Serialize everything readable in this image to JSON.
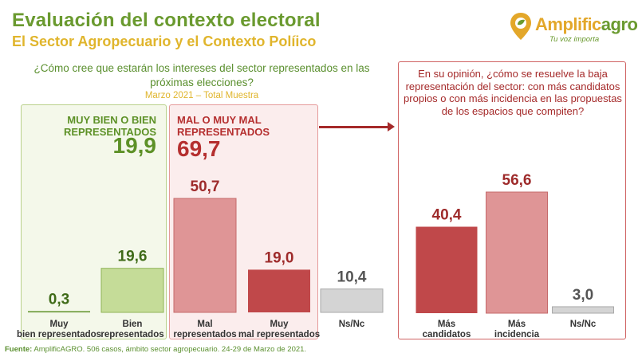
{
  "header": {
    "title": "Evaluación del contexto electoral",
    "subtitle": "El Sector Agropecuario y el Contexto Políico"
  },
  "logo": {
    "name_part1": "Amplific",
    "name_part2": "agro",
    "tagline": "Tu voz importa"
  },
  "left_question": {
    "text": "¿Cómo cree que estarán los intereses del sector representados en las próximas elecciones?",
    "sample_note": "Marzo 2021 – Total Muestra"
  },
  "right_question": {
    "text": "En su opinión, ¿cómo se resuelve la baja representación del sector: con más candidatos propios o con más incidencia en las propuestas de los espacios que compiten?"
  },
  "groups": {
    "good": {
      "label": "MUY BIEN O BIEN REPRESENTADOS",
      "value": "19,9"
    },
    "bad": {
      "label": "MAL O MUY MAL REPRESENTADOS",
      "value": "69,7"
    }
  },
  "colors": {
    "green_dark": "#5d9127",
    "green_light": "#c5dc98",
    "red_dark": "#c0484a",
    "red_light": "#df9596",
    "gray": "#d4d4d4"
  },
  "chart_data": [
    {
      "type": "bar",
      "title": "¿Cómo cree que estarán los intereses del sector representados en las próximas elecciones?",
      "categories": [
        "Muy bien representados",
        "Bien representados",
        "Mal representados",
        "Muy mal representados",
        "Ns/Nc"
      ],
      "values": [
        0.3,
        19.6,
        50.7,
        19.0,
        10.4
      ],
      "value_labels": [
        "0,3",
        "19,6",
        "50,7",
        "19,0",
        "10,4"
      ],
      "bar_colors": [
        "#5d9127",
        "#c5dc98",
        "#df9596",
        "#c0484a",
        "#d4d4d4"
      ],
      "label_colors": [
        "#3f6b18",
        "#3f6b18",
        "#9e2b2b",
        "#9e2b2b",
        "#555555"
      ],
      "ylim": [
        0,
        60
      ]
    },
    {
      "type": "bar",
      "title": "¿Cómo se resuelve la baja representación del sector?",
      "categories": [
        "Más candidatos",
        "Más incidencia",
        "Ns/Nc"
      ],
      "values": [
        40.4,
        56.6,
        3.0
      ],
      "value_labels": [
        "40,4",
        "56,6",
        "3,0"
      ],
      "bar_colors": [
        "#c0484a",
        "#df9596",
        "#d4d4d4"
      ],
      "label_colors": [
        "#9e2b2b",
        "#9e2b2b",
        "#555555"
      ],
      "ylim": [
        0,
        60
      ]
    }
  ],
  "footer": {
    "source_label": "Fuente:",
    "source_text": " AmplificAGRO. 506 casos, ámbito sector agropecuario. 24-29 de Marzo de 2021."
  }
}
